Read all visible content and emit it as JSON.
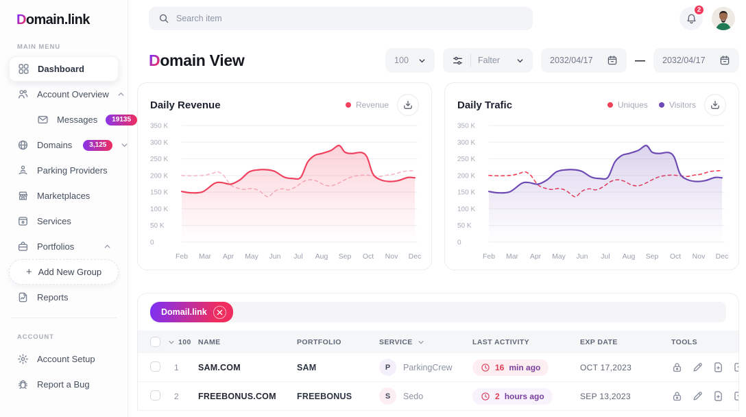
{
  "sidebar": {
    "logo": {
      "accent": "D",
      "rest": "omain.link"
    },
    "main_menu_label": "MAIN MENU",
    "account_label": "ACCOUNT",
    "items": [
      {
        "label": "Dashboard"
      },
      {
        "label": "Account Overview"
      },
      {
        "label": "Messages",
        "badge": "19135"
      },
      {
        "label": "Domains",
        "badge": "3,125"
      },
      {
        "label": "Parking Providers"
      },
      {
        "label": "Marketplaces"
      },
      {
        "label": "Services"
      },
      {
        "label": "Portfolios"
      },
      {
        "plus": "+",
        "label": "Add New Group"
      },
      {
        "label": "Reports"
      },
      {
        "label": "Account Setup"
      },
      {
        "label": "Report a Bug"
      }
    ]
  },
  "topbar": {
    "search_placeholder": "Search item",
    "notification_count": "2"
  },
  "page": {
    "title_accent": "D",
    "title_rest": "omain View",
    "page_size": "100",
    "filter_label": "Falter",
    "date_from": "2032/04/17",
    "date_separator": "—",
    "date_to": "2032/04/17"
  },
  "chart_data": [
    {
      "type": "area",
      "title": "Daily Revenue",
      "xlabel": "",
      "ylabel": "",
      "x_ticks": [
        "Feb",
        "Mar",
        "Apr",
        "May",
        "Jun",
        "Jul",
        "Aug",
        "Sep",
        "Oct",
        "Nov",
        "Dec"
      ],
      "y_ticks": [
        [
          350,
          "350 K"
        ],
        [
          300,
          "300 K"
        ],
        [
          250,
          "250 K"
        ],
        [
          200,
          "200 K"
        ],
        [
          150,
          "150 K"
        ],
        [
          100,
          "100 K"
        ],
        [
          50,
          "50 K"
        ],
        [
          0,
          "0"
        ]
      ],
      "ylim": [
        0,
        350
      ],
      "grid": true,
      "legend_position": "top-right",
      "legend": [
        {
          "label": "Revenue",
          "color": "#f0415e"
        }
      ],
      "series": [
        {
          "style": "dashed",
          "color": "#f6b9c6",
          "area": false,
          "points": [
            [
              0,
              200
            ],
            [
              0.5,
              199
            ],
            [
              1,
              201
            ],
            [
              1.35,
              207
            ],
            [
              1.55,
              211
            ],
            [
              1.8,
              200
            ],
            [
              2.1,
              172
            ],
            [
              2.4,
              162
            ],
            [
              2.7,
              158
            ],
            [
              3,
              161
            ],
            [
              3.3,
              155
            ],
            [
              3.6,
              139
            ],
            [
              3.75,
              137
            ],
            [
              4,
              153
            ],
            [
              4.3,
              160
            ],
            [
              4.6,
              157
            ],
            [
              4.9,
              166
            ],
            [
              5.2,
              181
            ],
            [
              5.5,
              187
            ],
            [
              5.8,
              183
            ],
            [
              6.1,
              172
            ],
            [
              6.4,
              169
            ],
            [
              6.7,
              176
            ],
            [
              7,
              187
            ],
            [
              7.3,
              196
            ],
            [
              7.6,
              200
            ],
            [
              7.9,
              201
            ],
            [
              8.2,
              199
            ],
            [
              8.5,
              197
            ],
            [
              8.8,
              201
            ],
            [
              9.1,
              204
            ],
            [
              9.5,
              212
            ],
            [
              9.8,
              214
            ],
            [
              10,
              215
            ]
          ]
        },
        {
          "name": "Revenue",
          "style": "solid",
          "color": "#f0415e",
          "area": true,
          "points": [
            [
              0,
              152
            ],
            [
              0.4,
              148
            ],
            [
              0.9,
              151
            ],
            [
              1.4,
              176
            ],
            [
              1.7,
              179
            ],
            [
              2.1,
              174
            ],
            [
              2.5,
              187
            ],
            [
              2.9,
              211
            ],
            [
              3.3,
              217
            ],
            [
              3.7,
              217
            ],
            [
              4,
              212
            ],
            [
              4.4,
              195
            ],
            [
              4.75,
              191
            ],
            [
              5.1,
              194
            ],
            [
              5.4,
              240
            ],
            [
              5.7,
              260
            ],
            [
              6,
              266
            ],
            [
              6.4,
              275
            ],
            [
              6.75,
              290
            ],
            [
              7,
              270
            ],
            [
              7.3,
              266
            ],
            [
              7.7,
              269
            ],
            [
              7.95,
              255
            ],
            [
              8.2,
              205
            ],
            [
              8.5,
              188
            ],
            [
              8.9,
              182
            ],
            [
              9.3,
              185
            ],
            [
              9.7,
              194
            ],
            [
              10,
              193
            ]
          ]
        }
      ]
    },
    {
      "type": "area",
      "title": "Daily Trafic",
      "xlabel": "",
      "ylabel": "",
      "x_ticks": [
        "Feb",
        "Mar",
        "Apr",
        "May",
        "Jun",
        "Jul",
        "Aug",
        "Sep",
        "Oct",
        "Nov",
        "Dec"
      ],
      "y_ticks": [
        [
          350,
          "350 K"
        ],
        [
          300,
          "300 K"
        ],
        [
          250,
          "250 K"
        ],
        [
          200,
          "200 K"
        ],
        [
          150,
          "150 K"
        ],
        [
          100,
          "100 K"
        ],
        [
          50,
          "50 K"
        ],
        [
          0,
          "0"
        ]
      ],
      "ylim": [
        0,
        350
      ],
      "grid": true,
      "legend_position": "top-right",
      "legend": [
        {
          "label": "Uniques",
          "color": "#ef4158"
        },
        {
          "label": "Visitors",
          "color": "#6e4bb4"
        }
      ],
      "series": [
        {
          "name": "Uniques",
          "style": "dashed",
          "color": "#ef4158",
          "area": false,
          "points": [
            [
              0,
              200
            ],
            [
              0.5,
              199
            ],
            [
              1,
              201
            ],
            [
              1.35,
              207
            ],
            [
              1.55,
              211
            ],
            [
              1.8,
              200
            ],
            [
              2.1,
              172
            ],
            [
              2.4,
              162
            ],
            [
              2.7,
              158
            ],
            [
              3,
              161
            ],
            [
              3.3,
              155
            ],
            [
              3.6,
              139
            ],
            [
              3.75,
              137
            ],
            [
              4,
              153
            ],
            [
              4.3,
              160
            ],
            [
              4.6,
              157
            ],
            [
              4.9,
              166
            ],
            [
              5.2,
              181
            ],
            [
              5.5,
              187
            ],
            [
              5.8,
              183
            ],
            [
              6.1,
              172
            ],
            [
              6.4,
              169
            ],
            [
              6.7,
              176
            ],
            [
              7,
              187
            ],
            [
              7.3,
              196
            ],
            [
              7.6,
              200
            ],
            [
              7.9,
              201
            ],
            [
              8.2,
              199
            ],
            [
              8.5,
              197
            ],
            [
              8.8,
              201
            ],
            [
              9.1,
              204
            ],
            [
              9.5,
              212
            ],
            [
              9.8,
              214
            ],
            [
              10,
              215
            ]
          ]
        },
        {
          "name": "Visitors",
          "style": "solid",
          "color": "#6e4bb4",
          "area": true,
          "points": [
            [
              0,
              152
            ],
            [
              0.4,
              148
            ],
            [
              0.9,
              151
            ],
            [
              1.4,
              176
            ],
            [
              1.7,
              179
            ],
            [
              2.1,
              174
            ],
            [
              2.5,
              187
            ],
            [
              2.9,
              211
            ],
            [
              3.3,
              217
            ],
            [
              3.7,
              217
            ],
            [
              4,
              212
            ],
            [
              4.4,
              195
            ],
            [
              4.75,
              191
            ],
            [
              5.1,
              194
            ],
            [
              5.4,
              240
            ],
            [
              5.7,
              260
            ],
            [
              6,
              266
            ],
            [
              6.4,
              275
            ],
            [
              6.75,
              290
            ],
            [
              7,
              270
            ],
            [
              7.3,
              266
            ],
            [
              7.7,
              269
            ],
            [
              7.95,
              255
            ],
            [
              8.2,
              205
            ],
            [
              8.5,
              188
            ],
            [
              8.9,
              182
            ],
            [
              9.3,
              185
            ],
            [
              9.7,
              194
            ],
            [
              10,
              193
            ]
          ]
        }
      ]
    }
  ],
  "table": {
    "chip": "Domail.link",
    "page_size": "100",
    "columns": [
      "NAME",
      "PORTFOLIO",
      "SERVICE",
      "LAST ACTIVITY",
      "EXP DATE",
      "TOOLS"
    ],
    "rows": [
      {
        "num": "1",
        "name": "SAM.COM",
        "portfolio": "SAM",
        "service_initial": "P",
        "service": "ParkingCrew",
        "activity_value": "16",
        "activity_unit": "min ago",
        "exp_date": "OCT 17,2023"
      },
      {
        "num": "2",
        "name": "FREEBONUS.COM",
        "portfolio": "FREEBONUS",
        "service_initial": "S",
        "service": "Sedo",
        "activity_value": "2",
        "activity_unit": "hours ago",
        "exp_date": "SEP 13,2023"
      }
    ]
  },
  "colors": {
    "accent_purple": "#7b2ff7",
    "accent_red": "#ef2d5e",
    "revenue_line": "#f0415e",
    "revenue_secondary_dashed": "#f6b9c6",
    "visitors_line": "#6e4bb4",
    "uniques_line": "#ef4158",
    "notification_badge": "#f03a5e"
  },
  "icons": {
    "search": "magnifier",
    "notifications": "bell",
    "dashboard": "grid",
    "account_overview": "people",
    "messages": "envelope",
    "domains": "globe",
    "parking_providers": "person-over-hand",
    "marketplaces": "storefront",
    "services": "box",
    "portfolios": "briefcase",
    "reports": "document-chart",
    "account_setup": "gear",
    "report_a_bug": "bug",
    "filter": "sliders",
    "date": "calendar",
    "download": "download-tray",
    "last_activity": "clock",
    "tools": [
      "lock",
      "pencil",
      "file-plus",
      "note-plus"
    ],
    "chip_close": "x-circle"
  }
}
